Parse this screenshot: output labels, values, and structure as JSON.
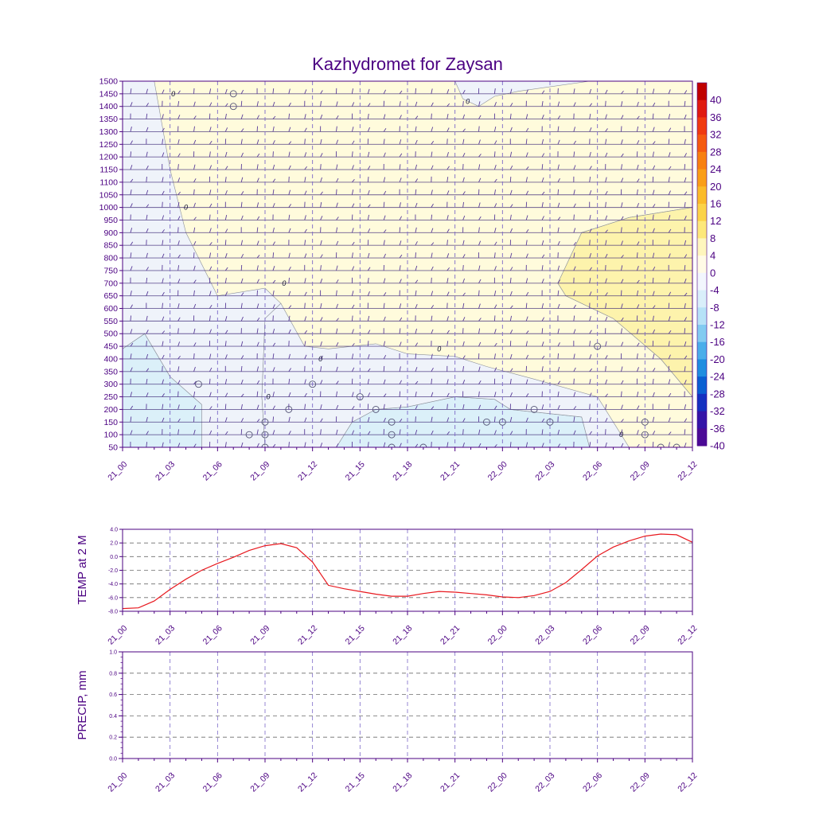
{
  "title": "Kazhydromet for Zaysan",
  "colors": {
    "axis": "#4b0082",
    "text": "#4b0082",
    "grid": "#7b68c8",
    "temp_line": "#e8191f",
    "barb": "#5a3d9a"
  },
  "x_ticks": [
    "21_00",
    "21_03",
    "21_06",
    "21_09",
    "21_12",
    "21_15",
    "21_18",
    "21_21",
    "22_00",
    "22_03",
    "22_06",
    "22_09",
    "22_12"
  ],
  "colorbar": {
    "labels": [
      "40",
      "36",
      "32",
      "28",
      "24",
      "20",
      "16",
      "12",
      "8",
      "4",
      "0",
      "-4",
      "-8",
      "-12",
      "-16",
      "-20",
      "-24",
      "-28",
      "-32",
      "-36",
      "-40"
    ],
    "colors": [
      "#c00000",
      "#e01a10",
      "#f03a10",
      "#f55a10",
      "#f88010",
      "#fa9e18",
      "#fbbb2a",
      "#fcd348",
      "#fde879",
      "#fef6bd",
      "#fffbe6",
      "#f2f6fd",
      "#d9effa",
      "#b6e2f7",
      "#82cbf1",
      "#4aaeea",
      "#1f8ee0",
      "#0a5fd2",
      "#1430c0",
      "#3414a8",
      "#4b0a96"
    ]
  },
  "chart_data": [
    {
      "type": "heatmap",
      "title": "Kazhydromet for Zaysan",
      "xlabel": "",
      "ylabel": "",
      "x_categories": [
        "21_00",
        "21_03",
        "21_06",
        "21_09",
        "21_12",
        "21_15",
        "21_18",
        "21_21",
        "22_00",
        "22_03",
        "22_06",
        "22_09",
        "22_12"
      ],
      "y_ticks": [
        50,
        100,
        150,
        200,
        250,
        300,
        350,
        400,
        450,
        500,
        550,
        600,
        650,
        700,
        750,
        800,
        850,
        900,
        950,
        1000,
        1050,
        1100,
        1150,
        1200,
        1250,
        1300,
        1350,
        1400,
        1450,
        1500
      ],
      "ylim": [
        50,
        1500
      ],
      "xlim_hours": [
        0,
        36
      ],
      "contour_levels": [
        -40,
        -36,
        -32,
        -28,
        -24,
        -20,
        -16,
        -12,
        -8,
        -4,
        0,
        4,
        8,
        12,
        16,
        20,
        24,
        28,
        32,
        36,
        40
      ],
      "regions": [
        {
          "level": "-8..-4",
          "points": [
            [
              0,
              50
            ],
            [
              0,
              440
            ],
            [
              1.4,
              500
            ],
            [
              3,
              330
            ],
            [
              5,
              220
            ],
            [
              5,
              50
            ]
          ]
        },
        {
          "level": "-4..0",
          "points": [
            [
              0,
              1500
            ],
            [
              2,
              1500
            ],
            [
              3,
              1150
            ],
            [
              4,
              900
            ],
            [
              6,
              650
            ],
            [
              9,
              680
            ],
            [
              10,
              620
            ],
            [
              9,
              560
            ],
            [
              8.8,
              250
            ],
            [
              9,
              50
            ],
            [
              5,
              50
            ],
            [
              5,
              220
            ],
            [
              3,
              330
            ],
            [
              1.4,
              500
            ],
            [
              0,
              440
            ]
          ]
        },
        {
          "level": "-4..0",
          "points": [
            [
              0,
              1500
            ],
            [
              0,
              1500
            ],
            [
              2,
              1500
            ],
            [
              2,
              1500
            ]
          ]
        },
        {
          "level": "-4..0",
          "points": [
            [
              21,
              1500
            ],
            [
              21.5,
              1430
            ],
            [
              22.5,
              1400
            ],
            [
              23.5,
              1440
            ],
            [
              25,
              1460
            ],
            [
              29.5,
              1500
            ]
          ]
        },
        {
          "level": "-8..-4",
          "points": [
            [
              13.5,
              50
            ],
            [
              14.5,
              150
            ],
            [
              16,
              200
            ],
            [
              18,
              210
            ],
            [
              21,
              250
            ],
            [
              23.5,
              240
            ],
            [
              24.5,
              200
            ],
            [
              29,
              170
            ],
            [
              29.5,
              50
            ]
          ]
        },
        {
          "level": "-4..0",
          "points": [
            [
              11.5,
              450
            ],
            [
              13,
              440
            ],
            [
              16,
              460
            ],
            [
              18,
              420
            ],
            [
              21,
              410
            ],
            [
              23,
              370
            ],
            [
              26,
              320
            ],
            [
              30,
              250
            ],
            [
              31,
              150
            ],
            [
              32,
              50
            ],
            [
              36,
              50
            ],
            [
              36,
              250
            ],
            [
              34,
              400
            ],
            [
              31,
              560
            ],
            [
              28,
              650
            ],
            [
              27.5,
              700
            ],
            [
              29,
              900
            ],
            [
              32,
              960
            ],
            [
              36,
              1000
            ],
            [
              36,
              50
            ],
            [
              29.5,
              50
            ],
            [
              29,
              170
            ],
            [
              24.5,
              200
            ],
            [
              23.5,
              240
            ],
            [
              21,
              250
            ],
            [
              18,
              210
            ],
            [
              16,
              200
            ],
            [
              14.5,
              150
            ],
            [
              13.5,
              50
            ],
            [
              9,
              50
            ],
            [
              8.8,
              250
            ],
            [
              9,
              560
            ],
            [
              10,
              620
            ],
            [
              11.5,
              450
            ]
          ]
        },
        {
          "level": "4..8",
          "points": [
            [
              27.5,
              700
            ],
            [
              28,
              650
            ],
            [
              31,
              560
            ],
            [
              34,
              400
            ],
            [
              36,
              250
            ],
            [
              36,
              1000
            ],
            [
              32,
              960
            ],
            [
              29,
              900
            ]
          ]
        }
      ],
      "wind_barb_levels": [
        50,
        100,
        150,
        200,
        250,
        300,
        350,
        400,
        450,
        500,
        550,
        600,
        650,
        700,
        750,
        800,
        850,
        900,
        950,
        1000,
        1050,
        1100,
        1150,
        1200,
        1250,
        1300,
        1350,
        1400,
        1450,
        1500
      ],
      "calm_markers": [
        [
          7,
          1450
        ],
        [
          7,
          1400
        ],
        [
          4.8,
          300
        ],
        [
          9,
          150
        ],
        [
          9,
          100
        ],
        [
          8,
          100
        ],
        [
          10.5,
          200
        ],
        [
          12,
          300
        ],
        [
          15,
          250
        ],
        [
          16,
          200
        ],
        [
          17,
          150
        ],
        [
          17,
          100
        ],
        [
          23,
          150
        ],
        [
          24,
          150
        ],
        [
          26,
          200
        ],
        [
          27,
          150
        ],
        [
          30,
          450
        ],
        [
          33,
          150
        ],
        [
          33,
          100
        ],
        [
          17,
          50
        ],
        [
          19,
          50
        ],
        [
          35,
          50
        ],
        [
          34,
          50
        ],
        [
          9,
          50
        ]
      ],
      "contour_labels": [
        {
          "text": "0",
          "x": 3.2,
          "y": 1450
        },
        {
          "text": "0",
          "x": 4,
          "y": 1000
        },
        {
          "text": "0",
          "x": 10.2,
          "y": 700
        },
        {
          "text": "0",
          "x": 12.5,
          "y": 400
        },
        {
          "text": "0",
          "x": 9.2,
          "y": 250
        },
        {
          "text": "0",
          "x": 21.8,
          "y": 1420
        },
        {
          "text": "0",
          "x": 20,
          "y": 440
        },
        {
          "text": "0",
          "x": 31.5,
          "y": 100
        }
      ]
    },
    {
      "type": "line",
      "xlabel": "",
      "ylabel": "TEMP at 2 M",
      "x_categories": [
        "21_00",
        "21_03",
        "21_06",
        "21_09",
        "21_12",
        "21_15",
        "21_18",
        "21_21",
        "22_00",
        "22_03",
        "22_06",
        "22_09",
        "22_12"
      ],
      "y_ticks": [
        "4.0",
        "2.0",
        "0.0",
        "-2.0",
        "-4.0",
        "-6.0",
        "-8.0"
      ],
      "ylim": [
        -8,
        4
      ],
      "series": [
        {
          "x_hours": [
            0,
            1,
            2,
            3,
            4,
            5,
            6,
            7,
            8,
            9,
            10,
            11,
            12,
            13,
            14,
            15,
            16,
            17,
            18,
            19,
            20,
            21,
            22,
            23,
            24,
            25,
            26,
            27,
            28,
            29,
            30,
            31,
            32,
            33,
            34,
            35,
            36
          ],
          "values": [
            -7.6,
            -7.5,
            -6.5,
            -4.8,
            -3.3,
            -2.0,
            -1.0,
            -0.1,
            0.9,
            1.6,
            1.9,
            1.3,
            -0.8,
            -4.2,
            -4.7,
            -5.1,
            -5.5,
            -5.8,
            -5.8,
            -5.4,
            -5.1,
            -5.2,
            -5.4,
            -5.6,
            -5.9,
            -6.0,
            -5.7,
            -5.1,
            -3.8,
            -1.9,
            0.1,
            1.4,
            2.3,
            3.0,
            3.3,
            3.2,
            2.1
          ]
        }
      ]
    },
    {
      "type": "line",
      "xlabel": "",
      "ylabel": "PRECIP, mm",
      "x_categories": [
        "21_00",
        "21_03",
        "21_06",
        "21_09",
        "21_12",
        "21_15",
        "21_18",
        "21_21",
        "22_00",
        "22_03",
        "22_06",
        "22_09",
        "22_12"
      ],
      "y_ticks": [
        "1.0",
        "0.8",
        "0.6",
        "0.4",
        "0.2",
        "0.0"
      ],
      "ylim": [
        0,
        1
      ],
      "series": []
    }
  ]
}
